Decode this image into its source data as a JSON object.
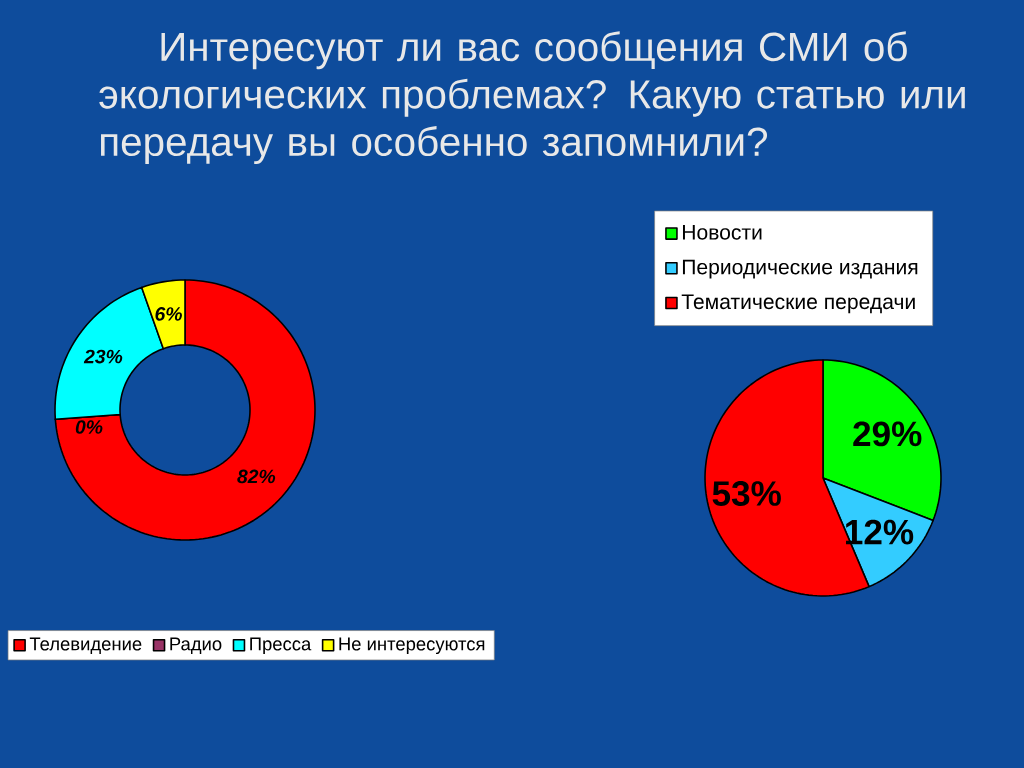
{
  "chart_data": [
    {
      "type": "donut",
      "title": "Интересуют ли вас сообщения СМИ об экологических проблемах? Какую статью или передачу вы особенно запомнили?",
      "categories": [
        "Телевидение",
        "Радио",
        "Пресса",
        "Не интересуются"
      ],
      "values": [
        82,
        0,
        23,
        6
      ],
      "colors": [
        "#ff0000",
        "#993366",
        "#00ffff",
        "#ffff00"
      ],
      "value_labels": [
        "82%",
        "0%",
        "23%",
        "6%"
      ],
      "legend": "bottom"
    },
    {
      "type": "pie",
      "categories": [
        "Новости",
        "Периодические  издания",
        "Тематические передачи"
      ],
      "values": [
        29,
        12,
        53
      ],
      "colors": [
        "#00ff00",
        "#33ccff",
        "#ff0000"
      ],
      "value_labels": [
        "29%",
        "12%",
        "53%"
      ],
      "legend": "top"
    }
  ]
}
